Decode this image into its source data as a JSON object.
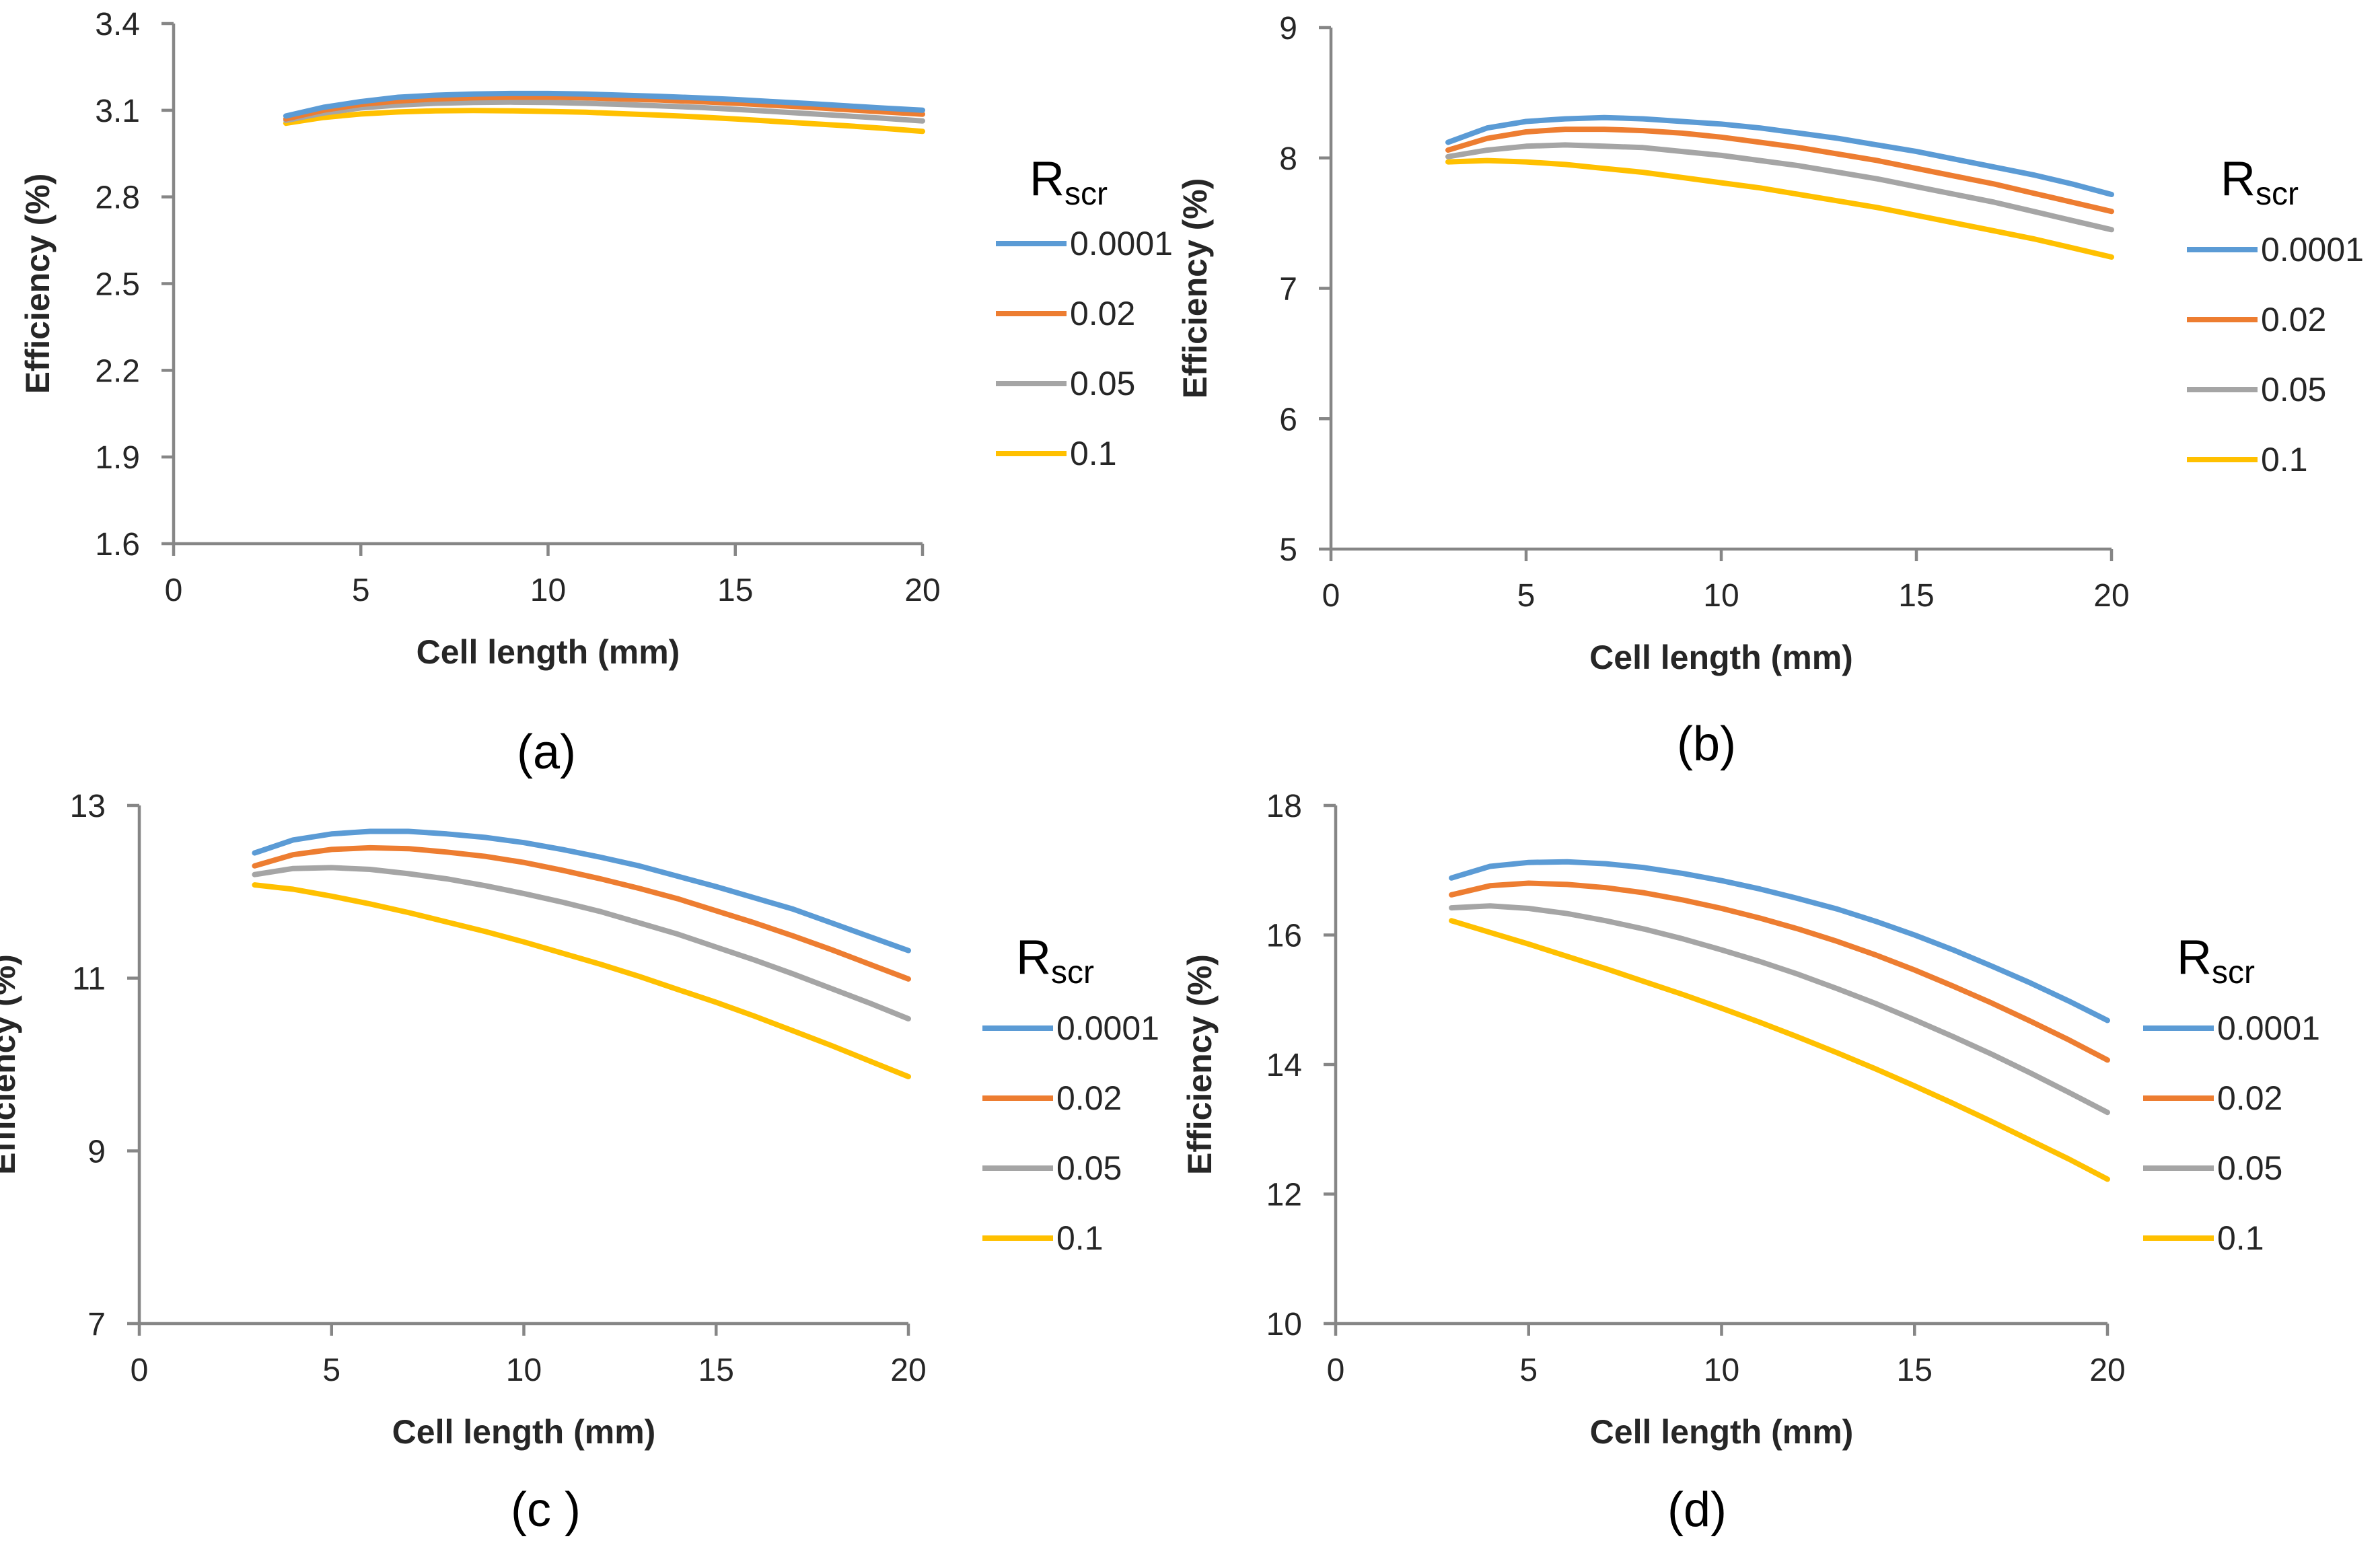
{
  "colors": {
    "series_0001": "#5B9BD5",
    "series_002": "#ED7D31",
    "series_005": "#A5A5A5",
    "series_01": "#FFC000"
  },
  "chart_data": [
    {
      "type": "line",
      "panel_label": "(a)",
      "xlabel": "Cell length (mm)",
      "ylabel": "Efficiency (%)",
      "xlim": [
        0,
        20
      ],
      "ylim": [
        1.6,
        3.4
      ],
      "xticks": [
        "0",
        "5",
        "10",
        "15",
        "20"
      ],
      "yticks": [
        "1.6",
        "1.9",
        "2.2",
        "2.5",
        "2.8",
        "3.1",
        "3.4"
      ],
      "legend_title": "R",
      "legend_title_sub": "scr",
      "x": [
        3,
        4,
        5,
        6,
        7,
        8,
        9,
        10,
        11,
        12,
        13,
        14,
        15,
        16,
        17,
        18,
        19,
        20
      ],
      "series": [
        {
          "name": "0.0001",
          "color": "#5B9BD5",
          "values": [
            3.08,
            3.11,
            3.13,
            3.145,
            3.152,
            3.156,
            3.158,
            3.158,
            3.156,
            3.152,
            3.148,
            3.143,
            3.137,
            3.13,
            3.123,
            3.115,
            3.107,
            3.1
          ]
        },
        {
          "name": "0.02",
          "color": "#ED7D31",
          "values": [
            3.07,
            3.1,
            3.12,
            3.132,
            3.139,
            3.143,
            3.145,
            3.145,
            3.143,
            3.139,
            3.135,
            3.13,
            3.124,
            3.117,
            3.11,
            3.102,
            3.094,
            3.086
          ]
        },
        {
          "name": "0.05",
          "color": "#A5A5A5",
          "values": [
            3.065,
            3.09,
            3.108,
            3.118,
            3.124,
            3.127,
            3.128,
            3.127,
            3.124,
            3.12,
            3.115,
            3.11,
            3.103,
            3.096,
            3.088,
            3.08,
            3.072,
            3.063
          ]
        },
        {
          "name": "0.1",
          "color": "#FFC000",
          "values": [
            3.055,
            3.075,
            3.087,
            3.094,
            3.098,
            3.099,
            3.098,
            3.096,
            3.093,
            3.088,
            3.083,
            3.077,
            3.07,
            3.062,
            3.054,
            3.046,
            3.037,
            3.027
          ]
        }
      ]
    },
    {
      "type": "line",
      "panel_label": "(b)",
      "xlabel": "Cell length (mm)",
      "ylabel": "Efficiency (%)",
      "xlim": [
        0,
        20
      ],
      "ylim": [
        5,
        9
      ],
      "xticks": [
        "0",
        "5",
        "10",
        "15",
        "20"
      ],
      "yticks": [
        "5",
        "6",
        "7",
        "8",
        "9"
      ],
      "legend_title": "R",
      "legend_title_sub": "scr",
      "x": [
        3,
        4,
        5,
        6,
        7,
        8,
        9,
        10,
        11,
        12,
        13,
        14,
        15,
        16,
        17,
        18,
        19,
        20
      ],
      "series": [
        {
          "name": "0.0001",
          "color": "#5B9BD5",
          "values": [
            8.12,
            8.23,
            8.28,
            8.3,
            8.31,
            8.3,
            8.28,
            8.26,
            8.23,
            8.19,
            8.15,
            8.1,
            8.05,
            7.99,
            7.93,
            7.87,
            7.8,
            7.72
          ]
        },
        {
          "name": "0.02",
          "color": "#ED7D31",
          "values": [
            8.06,
            8.15,
            8.2,
            8.22,
            8.22,
            8.21,
            8.19,
            8.16,
            8.12,
            8.08,
            8.03,
            7.98,
            7.92,
            7.86,
            7.8,
            7.73,
            7.66,
            7.59
          ]
        },
        {
          "name": "0.05",
          "color": "#A5A5A5",
          "values": [
            8.01,
            8.06,
            8.09,
            8.1,
            8.09,
            8.08,
            8.05,
            8.02,
            7.98,
            7.94,
            7.89,
            7.84,
            7.78,
            7.72,
            7.66,
            7.59,
            7.52,
            7.45
          ]
        },
        {
          "name": "0.1",
          "color": "#FFC000",
          "values": [
            7.97,
            7.98,
            7.97,
            7.95,
            7.92,
            7.89,
            7.85,
            7.81,
            7.77,
            7.72,
            7.67,
            7.62,
            7.56,
            7.5,
            7.44,
            7.38,
            7.31,
            7.24
          ]
        }
      ]
    },
    {
      "type": "line",
      "panel_label": "(c )",
      "xlabel": "Cell length (mm)",
      "ylabel": "Efficiency (%)",
      "xlim": [
        0,
        20
      ],
      "ylim": [
        7,
        13
      ],
      "xticks": [
        "0",
        "5",
        "10",
        "15",
        "20"
      ],
      "yticks": [
        "7",
        "9",
        "11",
        "13"
      ],
      "legend_title": "R",
      "legend_title_sub": "scr",
      "x": [
        3,
        4,
        5,
        6,
        7,
        8,
        9,
        10,
        11,
        12,
        13,
        14,
        15,
        16,
        17,
        18,
        19,
        20
      ],
      "series": [
        {
          "name": "0.0001",
          "color": "#5B9BD5",
          "values": [
            12.45,
            12.6,
            12.67,
            12.7,
            12.7,
            12.67,
            12.63,
            12.57,
            12.49,
            12.4,
            12.3,
            12.18,
            12.06,
            11.93,
            11.8,
            11.64,
            11.48,
            11.32
          ]
        },
        {
          "name": "0.02",
          "color": "#ED7D31",
          "values": [
            12.3,
            12.43,
            12.49,
            12.51,
            12.5,
            12.46,
            12.41,
            12.34,
            12.25,
            12.15,
            12.04,
            11.92,
            11.78,
            11.64,
            11.49,
            11.33,
            11.16,
            10.99
          ]
        },
        {
          "name": "0.05",
          "color": "#A5A5A5",
          "values": [
            12.2,
            12.27,
            12.28,
            12.26,
            12.21,
            12.15,
            12.07,
            11.98,
            11.88,
            11.77,
            11.64,
            11.51,
            11.36,
            11.21,
            11.05,
            10.88,
            10.71,
            10.53
          ]
        },
        {
          "name": "0.1",
          "color": "#FFC000",
          "values": [
            12.08,
            12.03,
            11.95,
            11.86,
            11.76,
            11.65,
            11.54,
            11.42,
            11.29,
            11.16,
            11.02,
            10.87,
            10.72,
            10.56,
            10.39,
            10.22,
            10.04,
            9.86
          ]
        }
      ]
    },
    {
      "type": "line",
      "panel_label": "(d)",
      "xlabel": "Cell length (mm)",
      "ylabel": "Efficiency (%)",
      "xlim": [
        0,
        20
      ],
      "ylim": [
        10,
        18
      ],
      "xticks": [
        "0",
        "5",
        "10",
        "15",
        "20"
      ],
      "yticks": [
        "10",
        "12",
        "14",
        "16",
        "18"
      ],
      "legend_title": "R",
      "legend_title_sub": "scr",
      "x": [
        3,
        4,
        5,
        6,
        7,
        8,
        9,
        10,
        11,
        12,
        13,
        14,
        15,
        16,
        17,
        18,
        19,
        20
      ],
      "series": [
        {
          "name": "0.0001",
          "color": "#5B9BD5",
          "values": [
            16.88,
            17.06,
            17.12,
            17.13,
            17.1,
            17.04,
            16.95,
            16.84,
            16.71,
            16.56,
            16.4,
            16.21,
            16.0,
            15.77,
            15.52,
            15.26,
            14.98,
            14.68
          ]
        },
        {
          "name": "0.02",
          "color": "#ED7D31",
          "values": [
            16.62,
            16.76,
            16.8,
            16.78,
            16.73,
            16.65,
            16.54,
            16.41,
            16.26,
            16.09,
            15.9,
            15.69,
            15.46,
            15.21,
            14.95,
            14.67,
            14.38,
            14.07
          ]
        },
        {
          "name": "0.05",
          "color": "#A5A5A5",
          "values": [
            16.42,
            16.45,
            16.41,
            16.33,
            16.22,
            16.09,
            15.94,
            15.77,
            15.59,
            15.39,
            15.17,
            14.94,
            14.69,
            14.43,
            14.16,
            13.87,
            13.57,
            13.26
          ]
        },
        {
          "name": "0.1",
          "color": "#FFC000",
          "values": [
            16.22,
            16.04,
            15.86,
            15.67,
            15.48,
            15.28,
            15.08,
            14.87,
            14.65,
            14.42,
            14.18,
            13.93,
            13.67,
            13.4,
            13.12,
            12.83,
            12.54,
            12.23
          ]
        }
      ]
    }
  ]
}
